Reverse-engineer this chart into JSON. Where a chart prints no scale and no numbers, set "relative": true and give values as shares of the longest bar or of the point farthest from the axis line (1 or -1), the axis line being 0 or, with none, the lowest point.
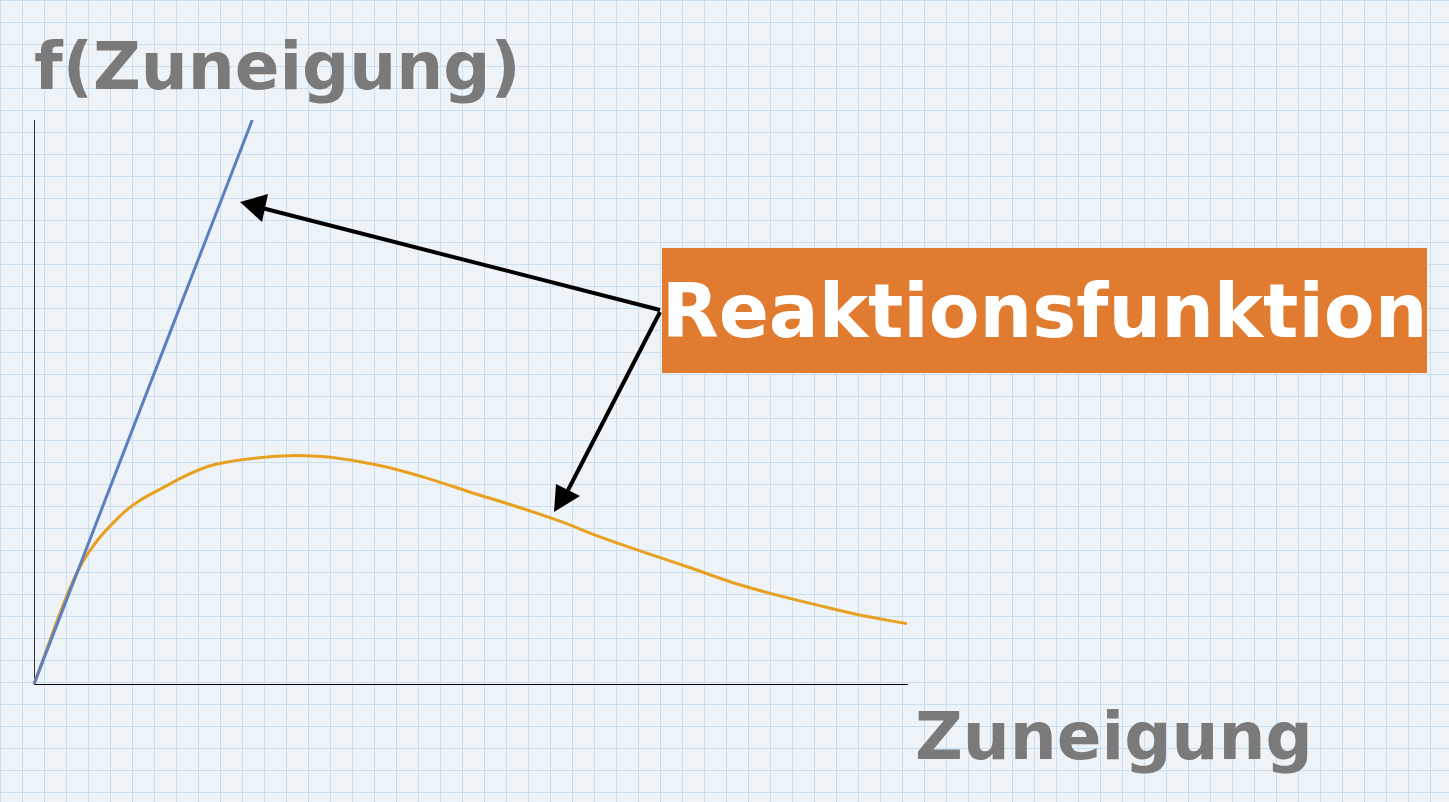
{
  "chart_data": {
    "type": "line",
    "relative": true,
    "xlabel": "Zuneigung",
    "ylabel": "f(Zuneigung)",
    "annotations": [
      "Reaktionsfunktion"
    ],
    "legend": false,
    "marker": "none",
    "line_style": "solid",
    "categories": [
      null,
      null,
      null,
      null,
      null,
      null,
      null,
      null,
      null,
      null,
      null,
      null,
      null,
      null,
      null,
      null,
      null,
      null,
      null,
      null,
      null
    ],
    "series": [
      {
        "color": "#5b7fbf",
        "values": [
          0,
          0.2,
          0.4,
          0.6,
          0.8,
          1,
          null,
          null,
          null,
          null,
          null,
          null,
          null,
          null,
          null,
          null,
          null,
          null,
          null,
          null,
          null
        ]
      },
      {
        "color": "#e8a020",
        "values": [
          0,
          0.2,
          0.3,
          0.35,
          0.386,
          0.4,
          0.405,
          0.4,
          0.386,
          0.365,
          0.34,
          0.316,
          0.29,
          0.26,
          0.233,
          0.207,
          0.18,
          0.158,
          0.139,
          0.121,
          0.107
        ]
      }
    ]
  }
}
